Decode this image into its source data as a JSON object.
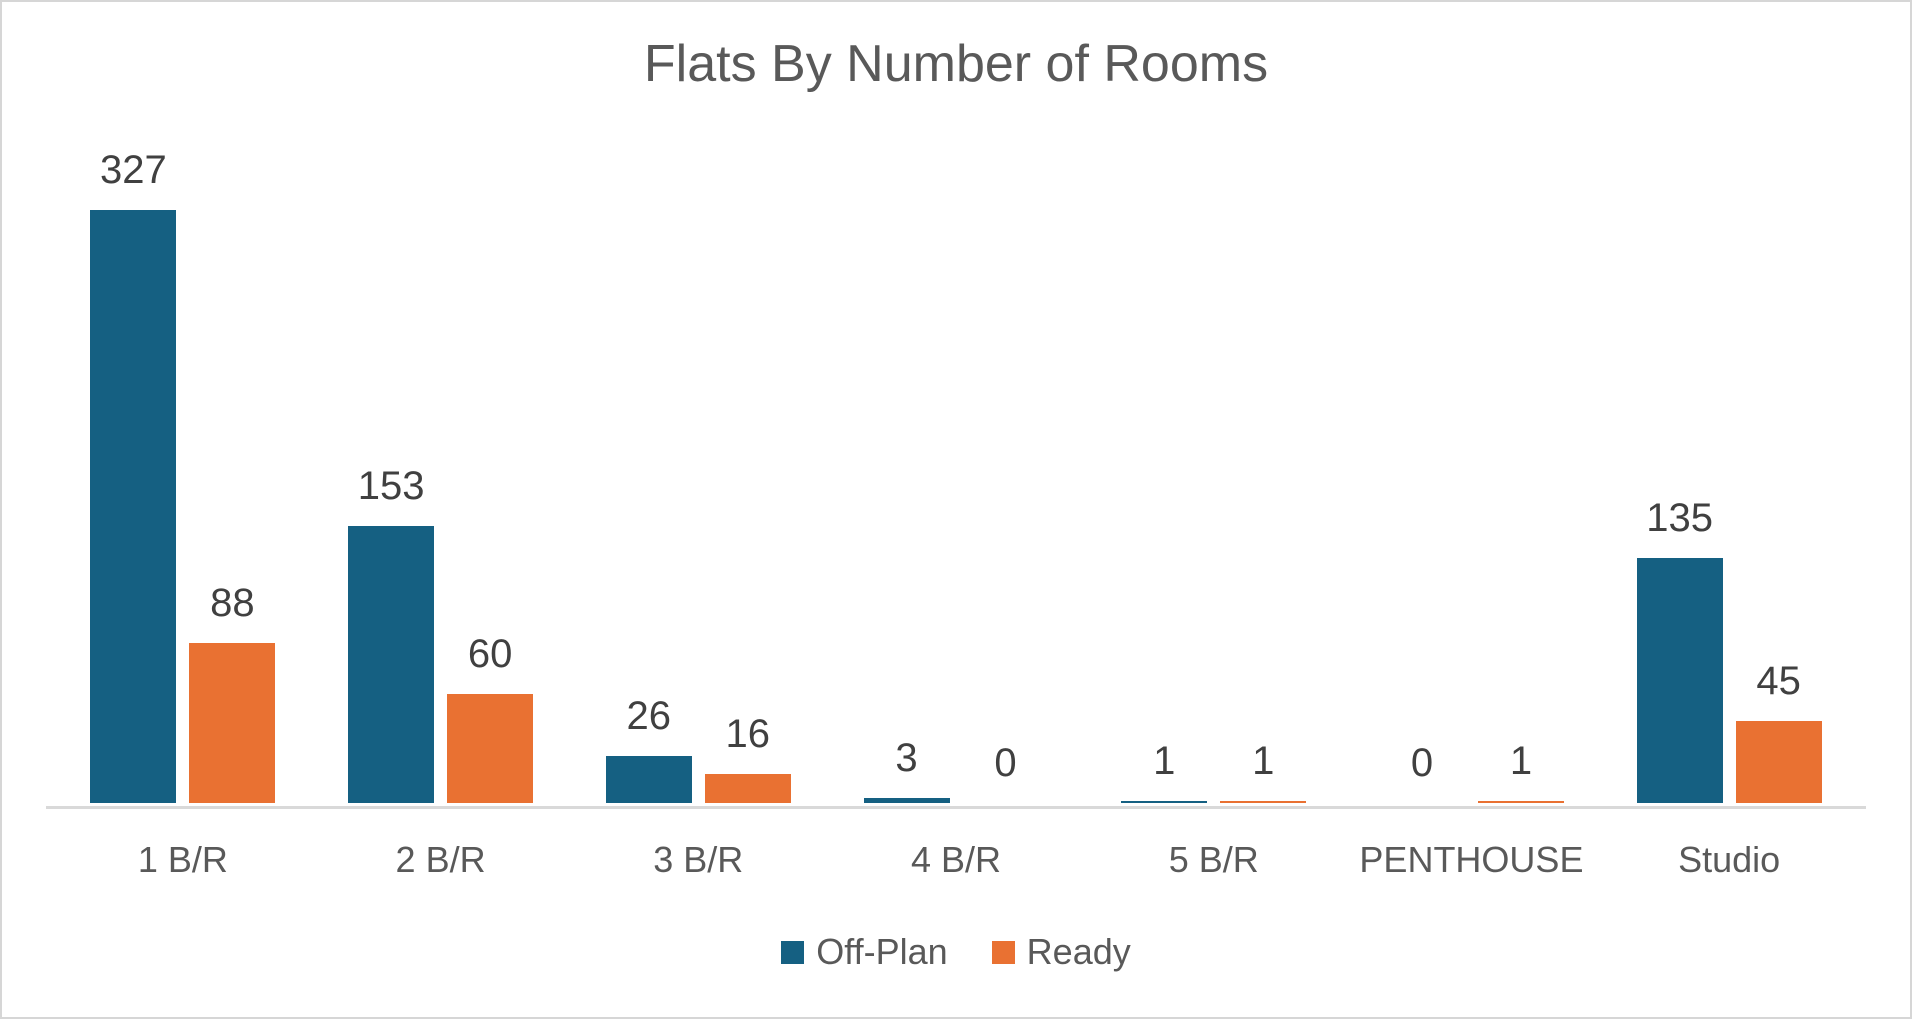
{
  "title": "Flats By Number of Rooms",
  "chart_data": {
    "type": "bar",
    "title": "Flats By Number of Rooms",
    "categories": [
      "1 B/R",
      "2 B/R",
      "3 B/R",
      "4 B/R",
      "5 B/R",
      "PENTHOUSE",
      "Studio"
    ],
    "series": [
      {
        "name": "Off-Plan",
        "color": "#156082",
        "values": [
          327,
          153,
          26,
          3,
          1,
          0,
          135
        ]
      },
      {
        "name": "Ready",
        "color": "#E97132",
        "values": [
          88,
          60,
          16,
          0,
          1,
          1,
          45
        ]
      }
    ],
    "data_labels": true,
    "gridlines": false,
    "y_axis_visible": false,
    "legend_position": "bottom",
    "ylim": [
      0,
      327
    ]
  },
  "colors": {
    "off_plan": "#156082",
    "ready": "#E97132",
    "axis_line": "#D9D9D9",
    "title_text": "#595959",
    "data_label_text": "#404040",
    "axis_label_text": "#595959",
    "background": "#FFFFFF",
    "border": "#D6D6D6"
  }
}
